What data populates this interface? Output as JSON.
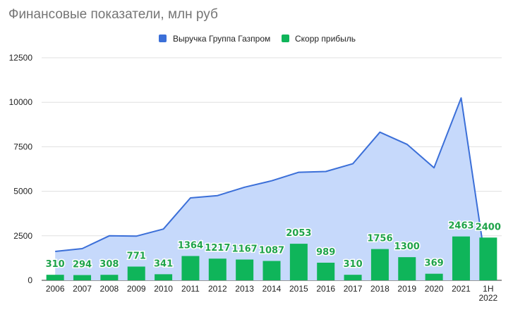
{
  "chart_data": {
    "type": "bar",
    "title": "Финансовые показатели, млн руб",
    "categories": [
      "2006",
      "2007",
      "2008",
      "2009",
      "2010",
      "2011",
      "2012",
      "2013",
      "2014",
      "2015",
      "2016",
      "2017",
      "2018",
      "2019",
      "2020",
      "2021",
      "1H 2022"
    ],
    "series": [
      {
        "name": "Выручка Группа Газпром",
        "type": "area",
        "color": "#3b6fd8",
        "fill": "#c6d9fb",
        "values": [
          1620,
          1780,
          2500,
          2480,
          2880,
          4630,
          4760,
          5230,
          5590,
          6070,
          6110,
          6550,
          8320,
          7640,
          6320,
          10240,
          0
        ]
      },
      {
        "name": "Скорр прибыль",
        "type": "bar",
        "color": "#0fb55a",
        "values": [
          310,
          294,
          308,
          771,
          341,
          1364,
          1217,
          1167,
          1087,
          2053,
          989,
          310,
          1756,
          1300,
          369,
          2463,
          2400
        ]
      }
    ],
    "y_ticks": [
      "0",
      "2500",
      "5000",
      "7500",
      "10000",
      "12500"
    ],
    "ylim": [
      0,
      12500
    ],
    "legend_position": "top",
    "grid": true
  }
}
